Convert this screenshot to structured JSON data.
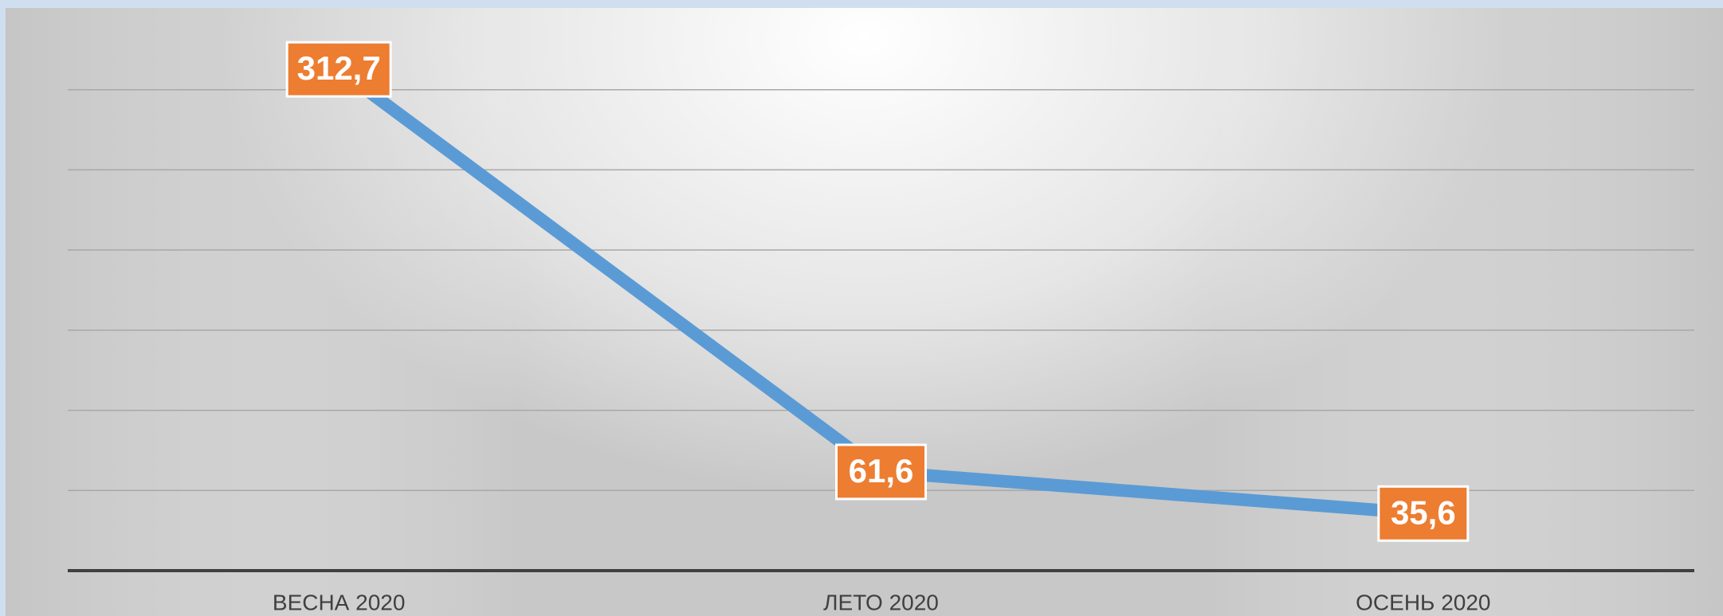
{
  "chart_data": {
    "type": "line",
    "categories": [
      "ВЕСНА 2020",
      "ЛЕТО 2020",
      "ОСЕНЬ 2020"
    ],
    "series": [
      {
        "color": "#5b9bd5",
        "values": [
          312.7,
          61.6,
          35.6
        ],
        "value_labels": [
          "312,7",
          "61,6",
          "35,6"
        ],
        "label_color": "#ed7d31"
      }
    ],
    "ylim": [
      0,
      350
    ],
    "yticks": [
      0,
      50,
      100,
      150,
      200,
      250,
      300
    ],
    "grid": true
  }
}
